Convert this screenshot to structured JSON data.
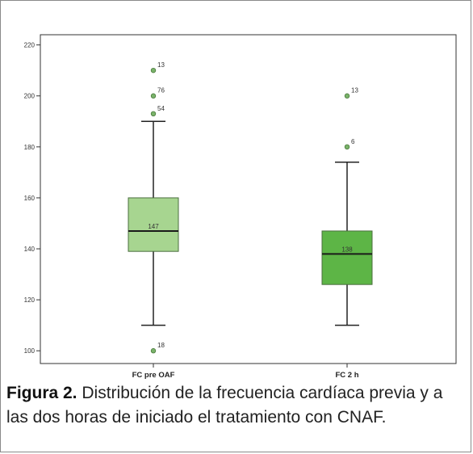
{
  "chart_data": {
    "type": "box",
    "categories": [
      "FC pre OAF",
      "FC 2 h"
    ],
    "ylim": [
      95,
      224
    ],
    "yticks": [
      100,
      120,
      140,
      160,
      180,
      200,
      220
    ],
    "boxes": [
      {
        "category": "FC pre OAF",
        "min": 110,
        "q1": 139,
        "median": 147,
        "q3": 160,
        "max": 190,
        "median_label": "147",
        "color": "#a7d590",
        "outliers": [
          {
            "value": 210,
            "label": "13"
          },
          {
            "value": 200,
            "label": "76"
          },
          {
            "value": 193,
            "label": "54"
          },
          {
            "value": 100,
            "label": "18"
          }
        ]
      },
      {
        "category": "FC 2 h",
        "min": 110,
        "q1": 126,
        "median": 138,
        "q3": 147,
        "max": 174,
        "median_label": "138",
        "color": "#5db546",
        "outliers": [
          {
            "value": 200,
            "label": "13"
          },
          {
            "value": 180,
            "label": "6"
          }
        ]
      }
    ],
    "colors": {
      "outlier_fill": "#7ab36a",
      "outlier_stroke": "#4a7a3c"
    }
  },
  "caption": {
    "label": "Figura 2.",
    "text": " Distribución de la frecuencia cardíaca previa y a las dos horas de iniciado el tratamiento con CNAF."
  }
}
